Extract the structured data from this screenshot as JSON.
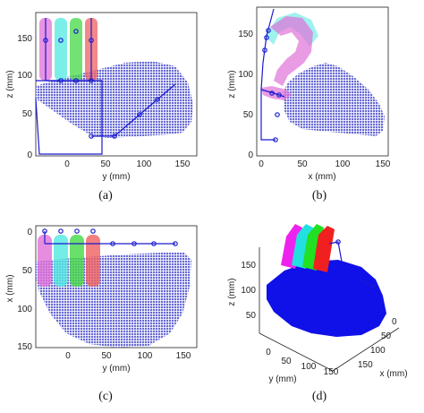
{
  "colors": {
    "workspace": "#6a6cd6",
    "workspace_3d": "#1010e8",
    "mechanism": "#1a1ad0",
    "finger1": "#e070d8",
    "finger2": "#50e8e0",
    "finger3": "#44d844",
    "finger4": "#f06060",
    "axis": "#222222"
  },
  "panels": [
    {
      "caption": "(a)",
      "xlabel": "y (mm)",
      "ylabel": "z (mm)",
      "xticks": [
        "0",
        "50",
        "100",
        "150"
      ],
      "yticks": [
        "150",
        "100",
        "50",
        "0"
      ]
    },
    {
      "caption": "(b)",
      "xlabel": "x (mm)",
      "ylabel": "z (mm)",
      "xticks": [
        "0",
        "50",
        "100",
        "150"
      ],
      "yticks": [
        "150",
        "100",
        "50",
        "0"
      ]
    },
    {
      "caption": "(c)",
      "xlabel": "y (mm)",
      "ylabel": "x (mm)",
      "xticks": [
        "0",
        "50",
        "100",
        "150"
      ],
      "yticks": [
        "0",
        "50",
        "100",
        "150"
      ]
    },
    {
      "caption": "(d)",
      "xlabel": "x (mm)",
      "ylabel": "z (mm)",
      "zlabel": "y (mm)",
      "yticks": [
        "150",
        "100",
        "50"
      ],
      "xticks": [
        "0",
        "50",
        "100",
        "150"
      ],
      "zticks": [
        "0",
        "50",
        "100",
        "150"
      ]
    }
  ]
}
